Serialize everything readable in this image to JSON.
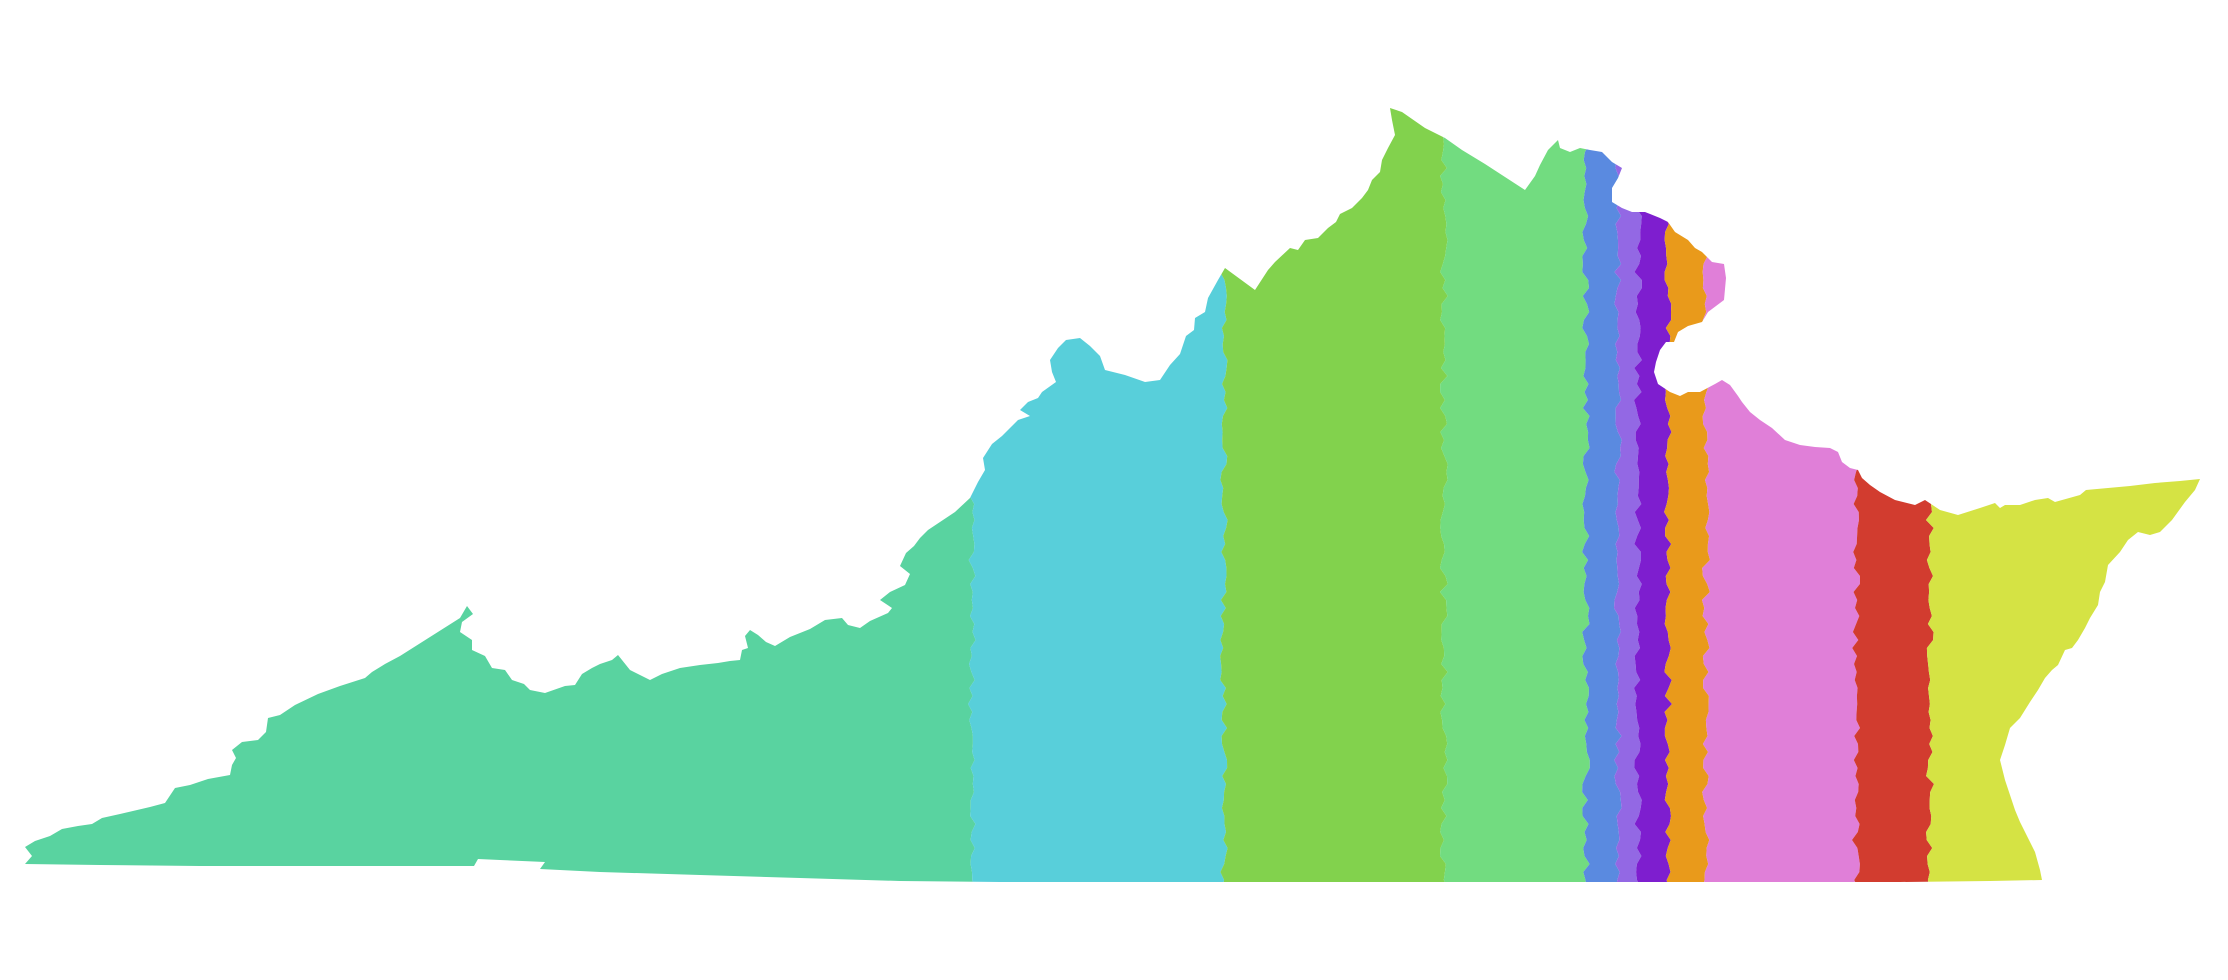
{
  "map": {
    "region": "Virginia",
    "background_color": "#ffffff",
    "bands": [
      {
        "id": "band-1",
        "color": "#59d3a0"
      },
      {
        "id": "band-2",
        "color": "#58cfda"
      },
      {
        "id": "band-3",
        "color": "#82d24d"
      },
      {
        "id": "band-4",
        "color": "#72dc80"
      },
      {
        "id": "band-5",
        "color": "#5a8ae0"
      },
      {
        "id": "band-6",
        "color": "#9368e4"
      },
      {
        "id": "band-7",
        "color": "#7e1ecf"
      },
      {
        "id": "band-8",
        "color": "#e99a1b"
      },
      {
        "id": "band-9",
        "color": "#e07fd8"
      },
      {
        "id": "band-10",
        "color": "#d23c2f"
      },
      {
        "id": "band-11",
        "color": "#d5e344"
      }
    ]
  }
}
